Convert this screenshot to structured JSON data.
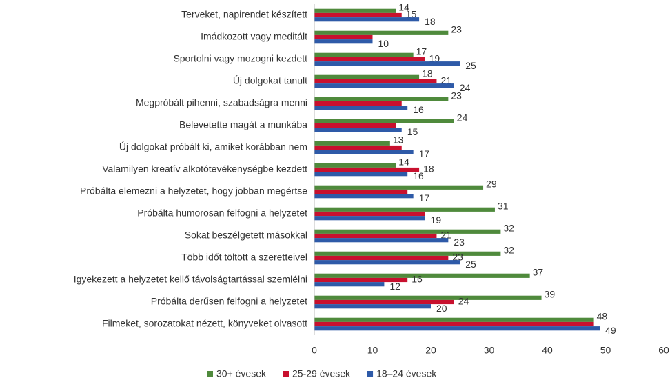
{
  "chart_data": {
    "type": "hbar",
    "categories": [
      "Terveket, napirendet készített",
      "Imádkozott vagy meditált",
      "Sportolni vagy mozogni kezdett",
      "Új dolgokat tanult",
      "Megpróbált pihenni, szabadságra menni",
      "Belevetette magát a munkába",
      "Új dolgokat próbált ki, amiket korábban nem",
      "Valamilyen kreatív alkotótevékenységbe kezdett",
      "Próbálta elemezni a helyzetet, hogy jobban megértse",
      "Próbálta humorosan felfogni a helyzetet",
      "Sokat beszélgetett másokkal",
      "Több időt töltött a szeretteivel",
      "Igyekezett a helyzetet kellő távolságtartással szemlélni",
      "Próbálta derűsen felfogni a helyzetet",
      "Filmeket, sorozatokat nézett, könyveket olvasott"
    ],
    "series": [
      {
        "name": "30+ évesek",
        "color": "#4f8a3c",
        "values": [
          14,
          23,
          17,
          18,
          23,
          24,
          13,
          14,
          29,
          31,
          32,
          32,
          37,
          39,
          48
        ],
        "value_labels": [
          "14",
          "23",
          "17",
          "18",
          "23",
          "24",
          "13",
          "14",
          "29",
          "31",
          "32",
          "32",
          "37",
          "39",
          "48"
        ]
      },
      {
        "name": "25-29 évesek",
        "color": "#c8102e",
        "values": [
          15,
          10,
          19,
          21,
          15,
          14,
          15,
          18,
          16,
          19,
          21,
          23,
          16,
          24,
          48
        ],
        "value_labels": [
          "15",
          null,
          "19",
          "21",
          null,
          null,
          null,
          "18",
          null,
          null,
          "21",
          "23",
          "16",
          "24",
          null
        ]
      },
      {
        "name": "18–24 évesek",
        "color": "#2e5aa8",
        "values": [
          18,
          10,
          25,
          24,
          16,
          15,
          17,
          16,
          17,
          19,
          23,
          25,
          12,
          20,
          49
        ],
        "value_labels": [
          "18",
          "10",
          "25",
          "24",
          "16",
          "15",
          "17",
          "16",
          "17",
          "19",
          "23",
          "25",
          "12",
          "20",
          "49"
        ]
      }
    ],
    "xlim": [
      0,
      60
    ],
    "xticks": [
      0,
      10,
      20,
      30,
      40,
      50,
      60
    ],
    "legend": "bottom"
  }
}
